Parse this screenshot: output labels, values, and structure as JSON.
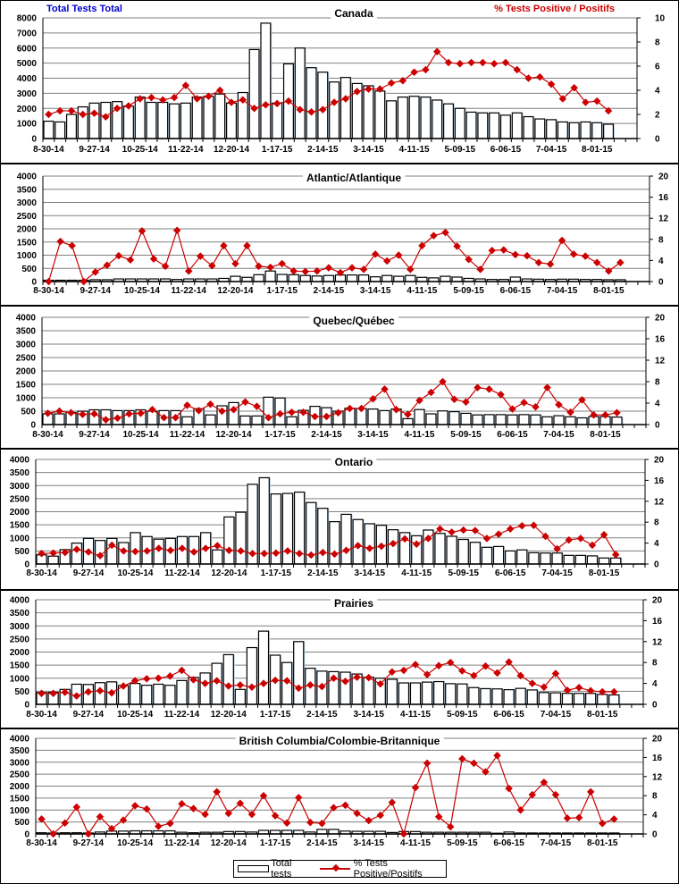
{
  "header": {
    "left_axis_title": "Total Tests  Total",
    "right_axis_title": "% Tests Positive / Positifs"
  },
  "colors": {
    "bar_fill": "#ffffff",
    "bar_edge": "#000000",
    "line": "#cc0000",
    "left_title": "#0000cc",
    "right_title": "#cc0000",
    "grid": "#808080"
  },
  "legend": {
    "placement": "bottom-center",
    "bar_label": "Total tests",
    "line_label": "% Tests Positive/Positifs"
  },
  "chart_data": [
    {
      "type": "bar",
      "title": "Canada",
      "xlabel": "",
      "ylabel": "Total Tests",
      "y2label": "% Tests Positive",
      "ylim": [
        0,
        8000
      ],
      "y2lim": [
        0,
        10
      ],
      "yticks": [
        0,
        1000,
        2000,
        3000,
        4000,
        5000,
        6000,
        7000,
        8000
      ],
      "y2ticks": [
        0,
        2,
        4,
        6,
        8,
        10
      ],
      "tick_labels": [
        "8-30-14",
        "9-27-14",
        "10-25-14",
        "11-22-14",
        "12-20-14",
        "1-17-15",
        "2-14-15",
        "3-14-15",
        "4-11-15",
        "5-09-15",
        "6-06-15",
        "7-04-15",
        "8-01-15"
      ],
      "series": [
        {
          "name": "Total tests",
          "values": [
            1150,
            1100,
            1600,
            2100,
            2350,
            2400,
            2450,
            2150,
            2750,
            2400,
            2400,
            2300,
            2350,
            2750,
            2800,
            2950,
            2350,
            3050,
            5900,
            7650,
            2350,
            4950,
            6000,
            4700,
            4400,
            3750,
            4050,
            3650,
            3500,
            3150,
            2500,
            2750,
            2800,
            2750,
            2550,
            2300,
            2000,
            1750,
            1700,
            1700,
            1550,
            1700,
            1450,
            1300,
            1250,
            1100,
            1050,
            1100,
            1050,
            950
          ]
        },
        {
          "name": "% Tests Positive/Positifs",
          "values": [
            2.0,
            2.3,
            2.3,
            2.0,
            2.1,
            1.8,
            2.5,
            2.7,
            3.3,
            3.4,
            3.2,
            3.4,
            4.4,
            3.3,
            3.5,
            4.0,
            3.0,
            3.2,
            2.5,
            2.8,
            2.9,
            3.1,
            2.4,
            2.2,
            2.4,
            3.0,
            3.3,
            3.9,
            4.1,
            4.1,
            4.6,
            4.8,
            5.5,
            5.7,
            7.2,
            6.3,
            6.2,
            6.3,
            6.3,
            6.2,
            6.3,
            5.7,
            5.0,
            5.1,
            4.5,
            3.3,
            4.2,
            3.0,
            3.1,
            2.3
          ]
        }
      ]
    },
    {
      "type": "bar",
      "title": "Atlantic/Atlantique",
      "ylim": [
        0,
        4000
      ],
      "y2lim": [
        0,
        20
      ],
      "yticks": [
        0,
        500,
        1000,
        1500,
        2000,
        2500,
        3000,
        3500,
        4000
      ],
      "y2ticks": [
        0,
        4,
        8,
        12,
        16,
        20
      ],
      "tick_labels": [
        "8-30-14",
        "9-27-14",
        "10-25-14",
        "11-22-14",
        "12-20-14",
        "1-17-15",
        "2-14-15",
        "3-14-15",
        "4-11-15",
        "5-09-15",
        "6-06-15",
        "7-04-15",
        "8-01-15"
      ],
      "series": [
        {
          "name": "Total tests",
          "values": [
            50,
            50,
            50,
            50,
            70,
            70,
            100,
            100,
            100,
            100,
            100,
            80,
            100,
            100,
            100,
            120,
            200,
            160,
            260,
            400,
            270,
            260,
            230,
            210,
            230,
            250,
            250,
            250,
            180,
            230,
            200,
            230,
            160,
            140,
            200,
            170,
            120,
            100,
            80,
            80,
            170,
            100,
            90,
            80,
            90,
            90,
            80,
            80,
            70,
            70
          ]
        },
        {
          "name": "% Tests Positive/Positifs",
          "values": [
            0,
            7.6,
            6.8,
            0,
            1.8,
            3.1,
            4.9,
            4.1,
            9.6,
            4.3,
            2.9,
            9.7,
            2.0,
            4.8,
            3.0,
            6.8,
            3.4,
            6.8,
            2.9,
            2.7,
            3.4,
            2.0,
            1.9,
            2.0,
            2.6,
            1.7,
            2.6,
            2.3,
            5.2,
            3.9,
            5.0,
            2.3,
            6.8,
            8.7,
            9.3,
            6.7,
            4.2,
            2.3,
            5.9,
            6.0,
            5.1,
            4.9,
            3.6,
            3.3,
            7.8,
            5.2,
            4.8,
            3.6,
            2.0,
            3.6
          ]
        }
      ]
    },
    {
      "type": "bar",
      "title": "Quebec/Québec",
      "ylim": [
        0,
        4000
      ],
      "y2lim": [
        0,
        20
      ],
      "yticks": [
        0,
        500,
        1000,
        1500,
        2000,
        2500,
        3000,
        3500,
        4000
      ],
      "y2ticks": [
        0,
        4,
        8,
        12,
        16,
        20
      ],
      "tick_labels": [
        "8-30-14",
        "9-27-14",
        "10-25-14",
        "11-22-14",
        "12-20-14",
        "1-17-15",
        "2-14-15",
        "3-14-15",
        "4-11-15",
        "5-09-15",
        "6-06-15",
        "7-04-15",
        "8-01-15"
      ],
      "series": [
        {
          "name": "Total tests",
          "values": [
            400,
            400,
            450,
            500,
            550,
            550,
            520,
            520,
            550,
            500,
            520,
            520,
            290,
            590,
            360,
            700,
            820,
            320,
            320,
            1020,
            990,
            290,
            530,
            680,
            630,
            500,
            610,
            600,
            580,
            520,
            580,
            220,
            560,
            400,
            510,
            480,
            420,
            360,
            370,
            370,
            360,
            370,
            360,
            290,
            330,
            290,
            250,
            300,
            300,
            280
          ]
        },
        {
          "name": "% Tests Positive/Positifs",
          "values": [
            2.1,
            2.5,
            2.2,
            1.9,
            2.0,
            0.9,
            1.2,
            2.0,
            2.1,
            2.8,
            1.3,
            1.3,
            3.6,
            2.6,
            3.8,
            2.5,
            2.8,
            4.2,
            3.4,
            1.3,
            2.0,
            2.3,
            2.3,
            1.5,
            1.5,
            2.2,
            3.0,
            3.0,
            4.8,
            6.6,
            2.8,
            1.9,
            4.5,
            6.0,
            8.0,
            4.7,
            4.2,
            6.9,
            6.6,
            5.6,
            2.9,
            4.1,
            3.3,
            6.9,
            3.7,
            2.3,
            4.6,
            1.8,
            1.8,
            2.2
          ]
        }
      ]
    },
    {
      "type": "bar",
      "title": "Ontario",
      "ylim": [
        0,
        4000
      ],
      "y2lim": [
        0,
        20
      ],
      "yticks": [
        0,
        500,
        1000,
        1500,
        2000,
        2500,
        3000,
        3500,
        4000
      ],
      "y2ticks": [
        0,
        4,
        8,
        12,
        16,
        20
      ],
      "tick_labels": [
        "8-30-14",
        "9-27-14",
        "10-25-14",
        "11-22-14",
        "12-20-14",
        "1-17-15",
        "2-14-15",
        "3-14-15",
        "4-11-15",
        "5-09-15",
        "6-06-15",
        "7-04-15",
        "8-01-15"
      ],
      "series": [
        {
          "name": "Total tests",
          "values": [
            350,
            300,
            550,
            800,
            980,
            900,
            980,
            820,
            1200,
            1050,
            950,
            980,
            1050,
            1050,
            1200,
            540,
            1800,
            1980,
            3050,
            3300,
            2680,
            2700,
            2750,
            2350,
            2130,
            1620,
            1900,
            1700,
            1540,
            1480,
            1310,
            1200,
            1080,
            1300,
            1170,
            1060,
            940,
            830,
            640,
            670,
            500,
            540,
            430,
            420,
            420,
            330,
            330,
            310,
            230,
            230
          ]
        },
        {
          "name": "% Tests Positive/Positifs",
          "values": [
            2.0,
            2.1,
            2.2,
            2.8,
            2.3,
            1.6,
            3.6,
            2.5,
            2.4,
            2.5,
            3.0,
            2.6,
            3.0,
            2.3,
            3.0,
            3.5,
            2.6,
            2.5,
            2.0,
            2.0,
            2.1,
            2.5,
            2.0,
            1.7,
            2.2,
            1.9,
            2.6,
            3.5,
            3.0,
            3.4,
            3.9,
            4.8,
            3.8,
            4.9,
            6.7,
            6.1,
            6.5,
            6.4,
            4.9,
            5.7,
            6.7,
            7.3,
            7.4,
            5.3,
            2.9,
            4.6,
            4.9,
            3.6,
            5.6,
            1.8
          ]
        }
      ]
    },
    {
      "type": "bar",
      "title": "Prairies",
      "ylim": [
        0,
        4000
      ],
      "y2lim": [
        0,
        20
      ],
      "yticks": [
        0,
        500,
        1000,
        1500,
        2000,
        2500,
        3000,
        3500,
        4000
      ],
      "y2ticks": [
        0,
        4,
        8,
        12,
        16,
        20
      ],
      "tick_labels": [
        "8-30-14",
        "9-27-14",
        "10-25-14",
        "11-22-14",
        "12-20-14",
        "1-17-15",
        "2-14-15",
        "3-14-15",
        "4-11-15",
        "5-09-15",
        "6-06-15",
        "7-04-15",
        "8-01-15"
      ],
      "series": [
        {
          "name": "Total tests",
          "values": [
            450,
            460,
            570,
            770,
            760,
            830,
            860,
            720,
            800,
            730,
            770,
            730,
            910,
            1030,
            1200,
            1570,
            1900,
            570,
            2170,
            2800,
            1880,
            1600,
            2400,
            1380,
            1270,
            1250,
            1230,
            1160,
            1040,
            1000,
            960,
            820,
            820,
            850,
            870,
            790,
            780,
            640,
            600,
            590,
            560,
            610,
            550,
            450,
            440,
            420,
            420,
            420,
            380,
            360
          ]
        },
        {
          "name": "% Tests Positive/Positifs",
          "values": [
            2.1,
            2.1,
            2.3,
            1.6,
            2.4,
            2.6,
            2.2,
            3.5,
            4.5,
            4.9,
            5.0,
            5.4,
            6.5,
            4.7,
            4.0,
            4.5,
            3.5,
            3.7,
            3.3,
            4.0,
            4.6,
            4.5,
            3.1,
            3.7,
            3.4,
            5.0,
            4.4,
            5.2,
            5.1,
            3.9,
            6.2,
            6.5,
            7.6,
            5.7,
            7.4,
            8.0,
            6.4,
            5.5,
            7.3,
            6.0,
            8.1,
            5.5,
            4.0,
            3.3,
            5.9,
            2.7,
            3.2,
            2.6,
            2.4,
            2.4
          ]
        }
      ]
    },
    {
      "type": "bar",
      "title": "British Columbia/Colombie-Britannique",
      "ylim": [
        0,
        4000
      ],
      "y2lim": [
        0,
        20
      ],
      "yticks": [
        0,
        500,
        1000,
        1500,
        2000,
        2500,
        3000,
        3500,
        4000
      ],
      "y2ticks": [
        0,
        4,
        8,
        12,
        16,
        20
      ],
      "tick_labels": [
        "8-30-14",
        "9-27-14",
        "10-25-14",
        "11-22-14",
        "12-20-14",
        "1-17-15",
        "2-14-15",
        "3-14-15",
        "4-11-15",
        "5-09-15",
        "6-06-15",
        "7-04-15",
        "8-01-15"
      ],
      "series": [
        {
          "name": "Total tests",
          "values": [
            50,
            40,
            50,
            50,
            40,
            80,
            120,
            120,
            130,
            130,
            130,
            130,
            70,
            50,
            70,
            70,
            100,
            100,
            80,
            150,
            150,
            150,
            150,
            80,
            190,
            190,
            120,
            110,
            110,
            110,
            60,
            100,
            100,
            70,
            70,
            70,
            70,
            70,
            70,
            30,
            80,
            40,
            40,
            40,
            40,
            40,
            40,
            40,
            40,
            40
          ]
        },
        {
          "name": "% Tests Positive/Positifs",
          "values": [
            3.1,
            0,
            2.3,
            5.6,
            0,
            3.6,
            1.1,
            2.9,
            5.9,
            5.2,
            1.6,
            2.2,
            6.3,
            5.3,
            4.1,
            8.8,
            4.3,
            6.4,
            4.1,
            8.0,
            3.8,
            2.3,
            7.6,
            2.4,
            2.2,
            5.5,
            6.0,
            4.3,
            2.8,
            3.9,
            6.6,
            0,
            9.7,
            14.8,
            3.6,
            1.5,
            15.7,
            14.8,
            13.0,
            16.4,
            9.5,
            5.0,
            8.2,
            10.8,
            8.2,
            3.3,
            3.4,
            8.8,
            2.2,
            3.1
          ]
        }
      ]
    }
  ]
}
